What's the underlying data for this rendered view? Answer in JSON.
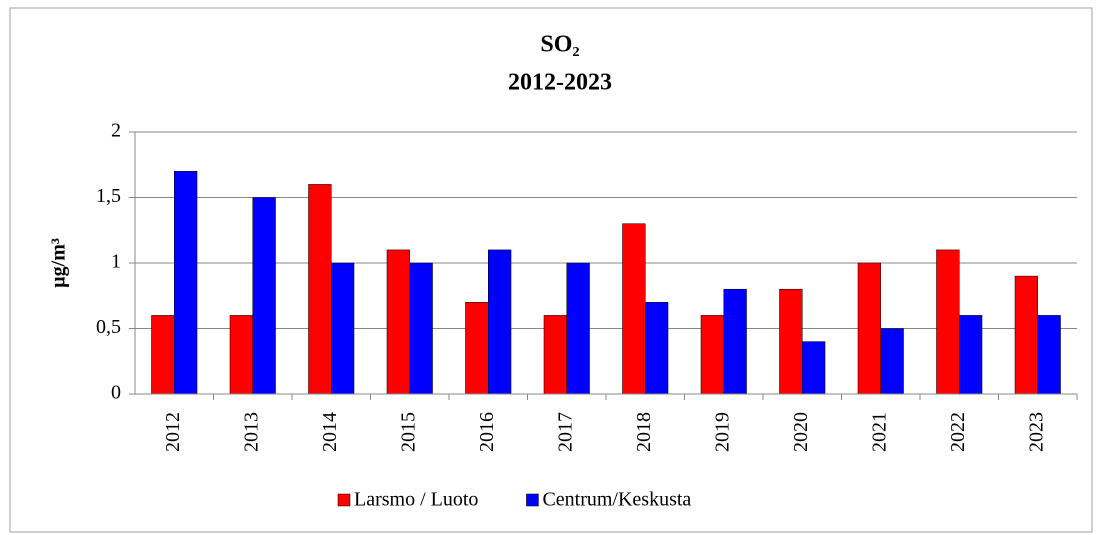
{
  "chart_data": {
    "type": "bar",
    "title": "SO₂",
    "subtitle": "2012-2023",
    "y_label": "µg/m³",
    "categories": [
      "2012",
      "2013",
      "2014",
      "2015",
      "2016",
      "2017",
      "2018",
      "2019",
      "2020",
      "2021",
      "2022",
      "2023"
    ],
    "series": [
      {
        "name": "Larsmo / Luoto",
        "color": "#ff0000",
        "values": [
          0.6,
          0.6,
          1.6,
          1.1,
          0.7,
          0.6,
          1.3,
          0.6,
          0.8,
          1.0,
          1.1,
          0.9
        ]
      },
      {
        "name": "Centrum/Keskusta",
        "color": "#0000ff",
        "values": [
          1.7,
          1.5,
          1.0,
          1.0,
          1.1,
          1.0,
          0.7,
          0.8,
          0.4,
          0.5,
          0.6,
          0.6
        ]
      }
    ],
    "ylim": [
      0,
      2
    ],
    "yticks": [
      0,
      {
        "value": 0.5,
        "label": "0,5"
      },
      1,
      {
        "value": 1.5,
        "label": "1,5"
      },
      2
    ],
    "grid": true,
    "legend": "bottom"
  }
}
